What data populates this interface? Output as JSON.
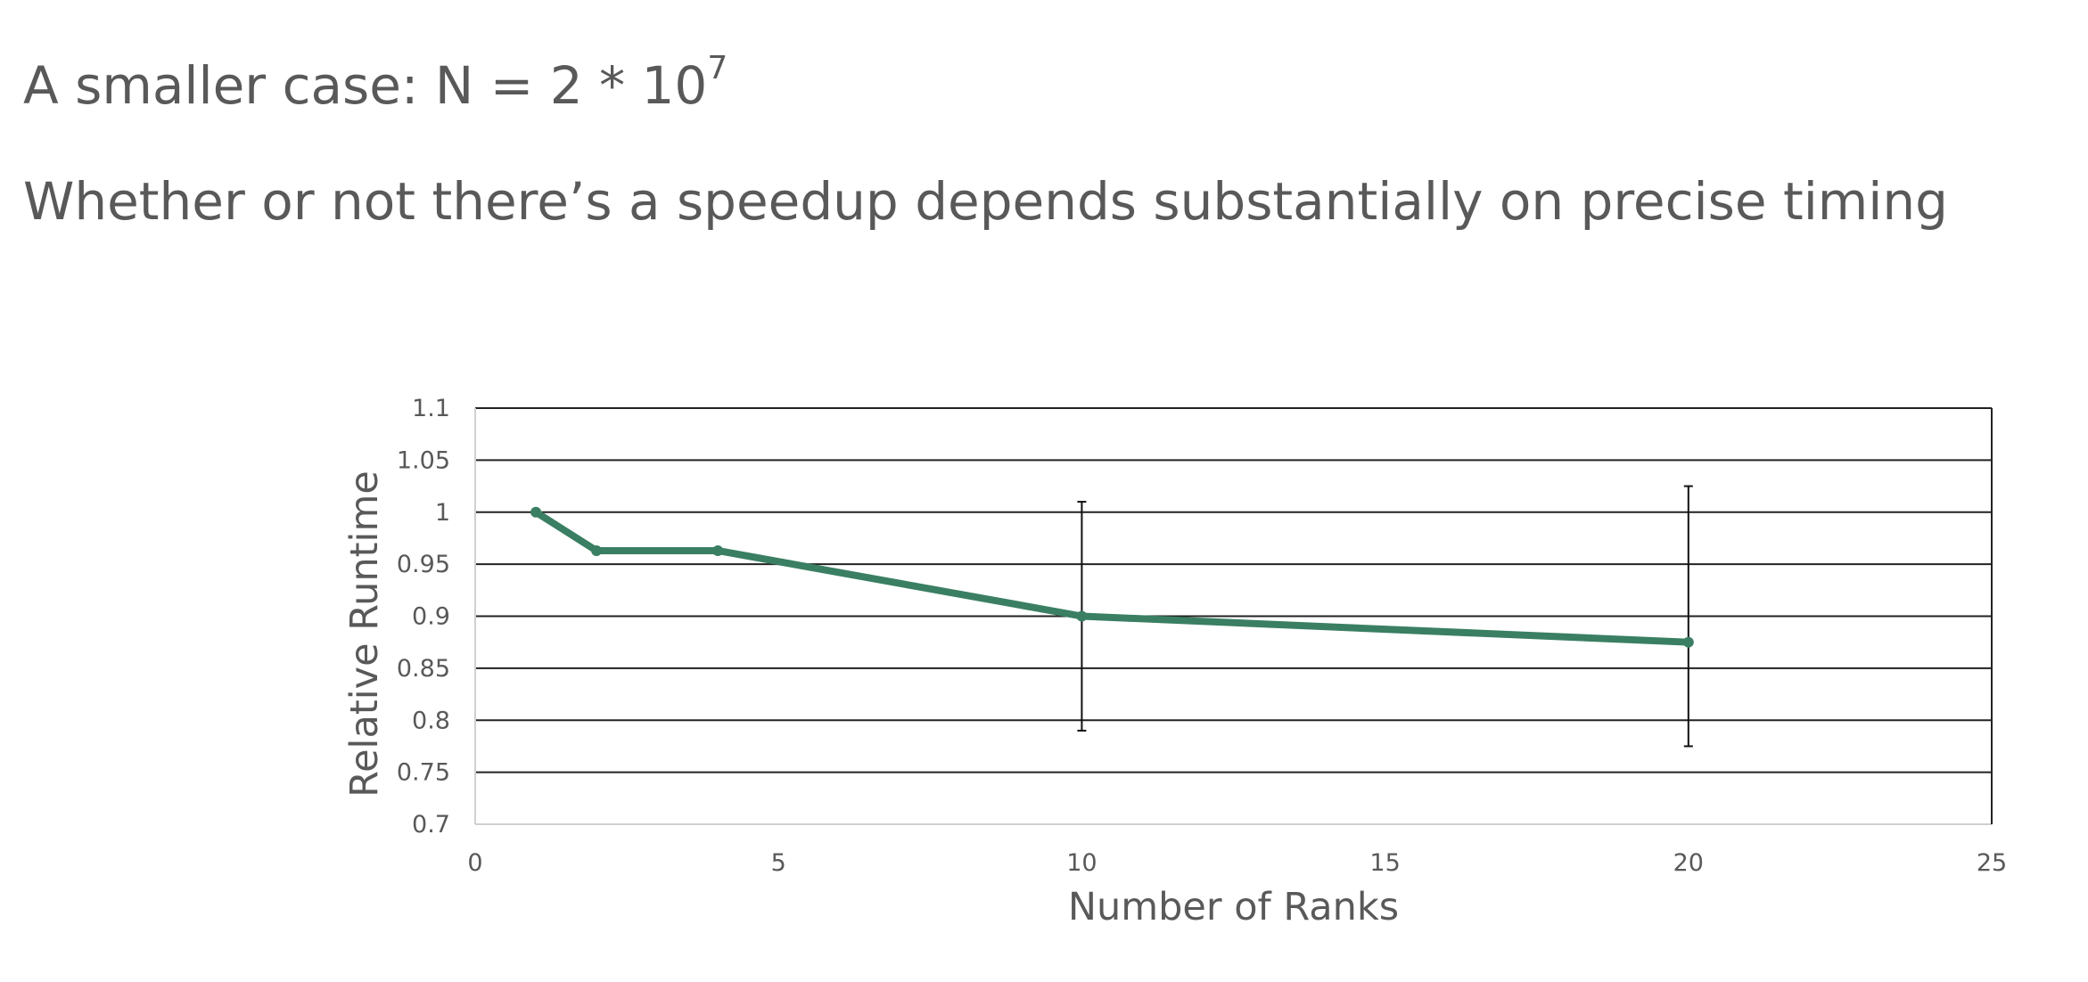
{
  "slide": {
    "title_main": "A smaller case: N = 2 * 10",
    "title_exponent": "7",
    "subtitle": "Whether or not there’s a speedup depends substantially on precise timing"
  },
  "chart_data": {
    "type": "line",
    "title": "",
    "xlabel": "Number of Ranks",
    "ylabel": "Relative Runtime",
    "xlim": [
      0,
      25
    ],
    "ylim": [
      0.7,
      1.1
    ],
    "xticks": [
      0,
      5,
      10,
      15,
      20,
      25
    ],
    "yticks": [
      0.7,
      0.75,
      0.8,
      0.85,
      0.9,
      0.95,
      1,
      1.05,
      1.1
    ],
    "ytick_labels": [
      "0.7",
      "0.75",
      "0.8",
      "0.85",
      "0.9",
      "0.95",
      "1",
      "1.05",
      "1.1"
    ],
    "grid": "horizontal",
    "series": [
      {
        "name": "Relative Runtime",
        "color": "#3a7f63",
        "x": [
          1,
          2,
          4,
          10,
          20
        ],
        "y": [
          1.0,
          0.963,
          0.963,
          0.9,
          0.875
        ]
      }
    ],
    "error_bars": [
      {
        "x": 10,
        "low": 0.79,
        "high": 1.01
      },
      {
        "x": 20,
        "low": 0.775,
        "high": 1.025
      }
    ]
  }
}
